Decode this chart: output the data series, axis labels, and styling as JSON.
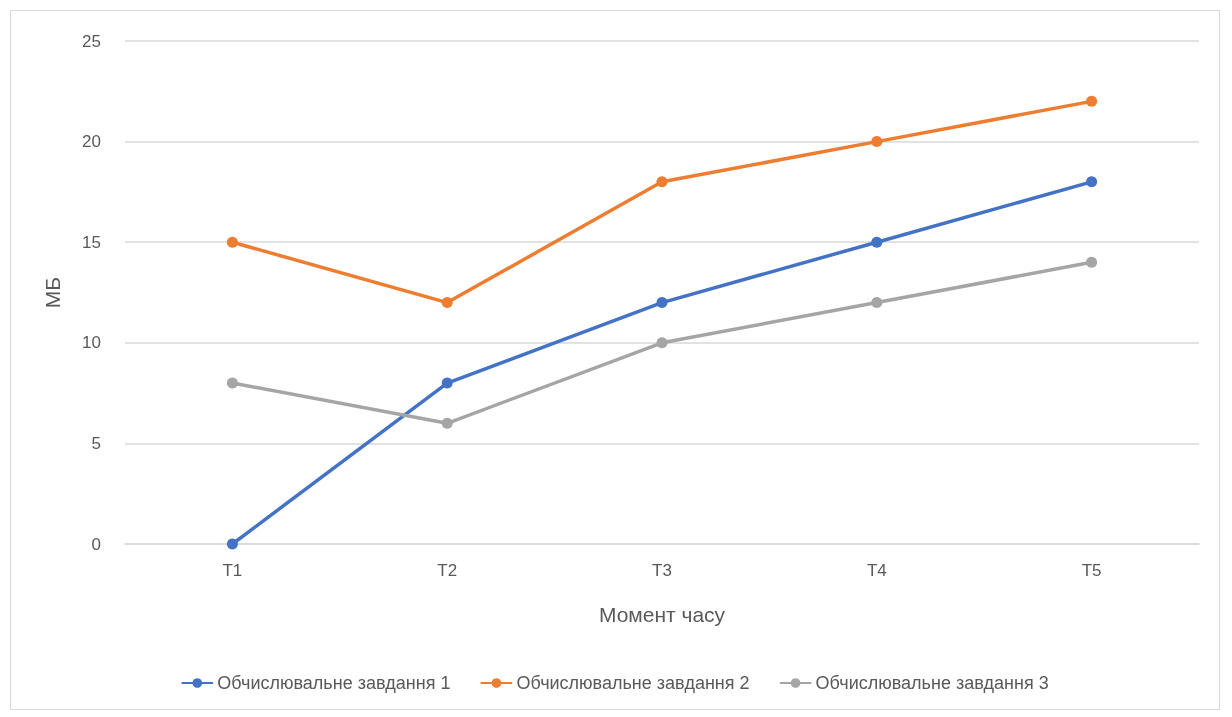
{
  "chart_data": {
    "type": "line",
    "xlabel": "Момент часу",
    "ylabel": "МБ",
    "categories": [
      "T1",
      "T2",
      "T3",
      "T4",
      "T5"
    ],
    "series": [
      {
        "name": "Обчислювальне завдання 1",
        "color": "#4472c4",
        "values": [
          0,
          8,
          12,
          15,
          18
        ]
      },
      {
        "name": "Обчислювальне завдання 2",
        "color": "#ed7d31",
        "values": [
          15,
          12,
          18,
          20,
          22
        ]
      },
      {
        "name": "Обчислювальне завдання 3",
        "color": "#a5a5a5",
        "values": [
          8,
          6,
          10,
          12,
          14
        ]
      }
    ],
    "ylim": [
      0,
      25
    ],
    "yticks": [
      0,
      5,
      10,
      15,
      20,
      25
    ],
    "grid": "y",
    "legend": "bottom",
    "marker": "circle",
    "line_style": "solid"
  }
}
